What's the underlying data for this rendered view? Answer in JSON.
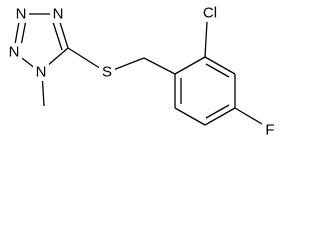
{
  "nodes": [
    {
      "label": "N"
    },
    {
      "label": "N"
    },
    {
      "label": "N"
    },
    {
      "label": "N"
    },
    {
      "label": "S"
    },
    {
      "label": "Cl"
    },
    {
      "label": "F"
    }
  ]
}
